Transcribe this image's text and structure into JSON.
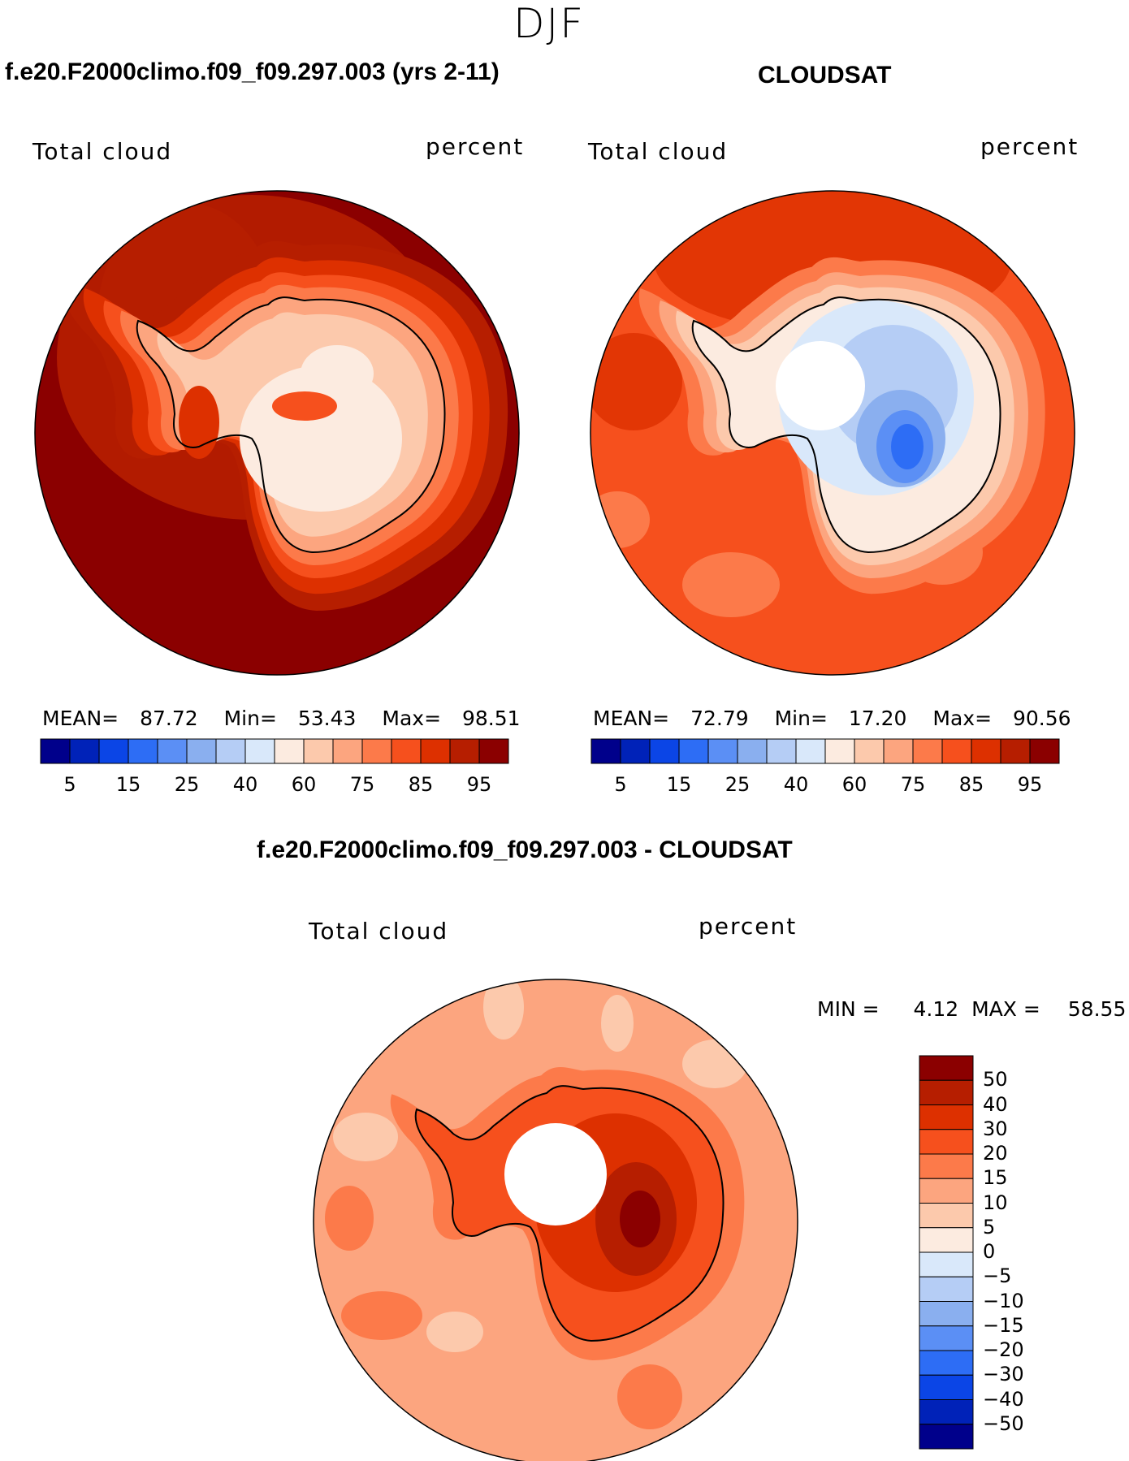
{
  "season": "DJF",
  "colors": {
    "abs_scale": [
      "#00008b",
      "#0022b8",
      "#0b45e6",
      "#2d6df5",
      "#5b8ff5",
      "#8aafef",
      "#b5cdf5",
      "#d9e8fa",
      "#fcebe0",
      "#fcc9ac",
      "#fca57f",
      "#fc7a4a",
      "#f6501d",
      "#dd3000",
      "#b61e00",
      "#8b0000"
    ],
    "diff_scale": [
      "#00008b",
      "#0022b8",
      "#0b45e6",
      "#2d6df5",
      "#5b8ff5",
      "#8aafef",
      "#b5cdf5",
      "#d9e8fa",
      "#fcebe0",
      "#fcc9ac",
      "#fca57f",
      "#fc7a4a",
      "#f6501d",
      "#dd3000",
      "#b61e00",
      "#8b0000"
    ]
  },
  "panels": [
    {
      "title": "f.e20.F2000climo.f09_f09.297.003 (yrs 2-11)",
      "variable": "Total cloud",
      "units": "percent",
      "stats": {
        "mean_label": "MEAN=",
        "mean": "87.72",
        "min_label": "Min=",
        "min": "53.43",
        "max_label": "Max=",
        "max": "98.51"
      },
      "colorbar_ticks": [
        "5",
        "15",
        "25",
        "40",
        "60",
        "75",
        "85",
        "95"
      ]
    },
    {
      "title": "CLOUDSAT",
      "variable": "Total cloud",
      "units": "percent",
      "stats": {
        "mean_label": "MEAN=",
        "mean": "72.79",
        "min_label": "Min=",
        "min": "17.20",
        "max_label": "Max=",
        "max": "90.56"
      },
      "colorbar_ticks": [
        "5",
        "15",
        "25",
        "40",
        "60",
        "75",
        "85",
        "95"
      ]
    }
  ],
  "difference": {
    "title": "f.e20.F2000climo.f09_f09.297.003 - CLOUDSAT",
    "variable": "Total cloud",
    "units": "percent",
    "stats": {
      "min_label": "MIN =",
      "min": "4.12",
      "max_label": "MAX =",
      "max": "58.55"
    },
    "colorbar_ticks": [
      "50",
      "40",
      "30",
      "20",
      "15",
      "10",
      "5",
      "0",
      "−5",
      "−10",
      "−15",
      "−20",
      "−30",
      "−40",
      "−50"
    ]
  }
}
